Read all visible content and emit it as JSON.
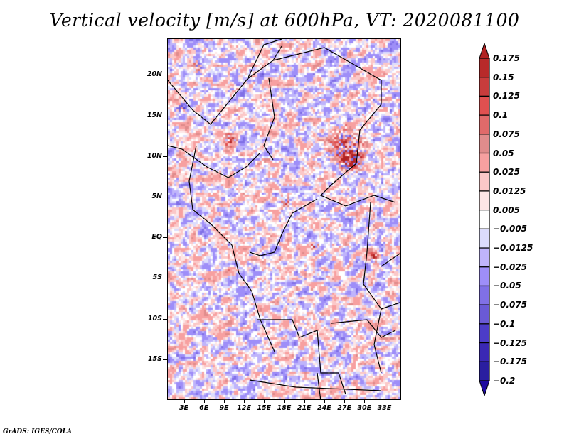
{
  "title": "Vertical velocity [m/s] at 600hPa, VT: 2020081100",
  "footer": "GrADS: IGES/COLA",
  "map": {
    "variable": "Vertical velocity",
    "units": "m/s",
    "level": "600hPa",
    "valid_time": "2020081100",
    "lon_range": [
      0.5,
      35.5
    ],
    "lat_range": [
      -20,
      24.5
    ],
    "lat_labels": [
      "20N",
      "15N",
      "10N",
      "5N",
      "EQ",
      "5S",
      "10S",
      "15S"
    ],
    "lat_values": [
      20,
      15,
      10,
      5,
      0,
      -5,
      -10,
      -15
    ],
    "lon_labels": [
      "3E",
      "6E",
      "9E",
      "12E",
      "15E",
      "18E",
      "21E",
      "24E",
      "27E",
      "30E",
      "33E"
    ],
    "lon_values": [
      3,
      6,
      9,
      12,
      15,
      18,
      21,
      24,
      27,
      30,
      33
    ]
  },
  "colorbar": {
    "labels": [
      "0.175",
      "0.15",
      "0.125",
      "0.1",
      "0.075",
      "0.05",
      "0.025",
      "0.0125",
      "0.005",
      "−0.005",
      "−0.0125",
      "−0.025",
      "−0.05",
      "−0.075",
      "−0.1",
      "−0.125",
      "−0.175",
      "−0.2"
    ],
    "colors": [
      "#b22222",
      "#b82a2a",
      "#c83c3c",
      "#e05050",
      "#e06a6a",
      "#e08c8c",
      "#f7a0a0",
      "#fbc8c8",
      "#fde6e6",
      "#ffffff",
      "#dcdcfc",
      "#bfb4fb",
      "#9e8ef8",
      "#8070e6",
      "#6a5ad6",
      "#4c3cc8",
      "#3a28b4",
      "#2a1ea0",
      "#1e0aa0"
    ],
    "extend": "both"
  }
}
